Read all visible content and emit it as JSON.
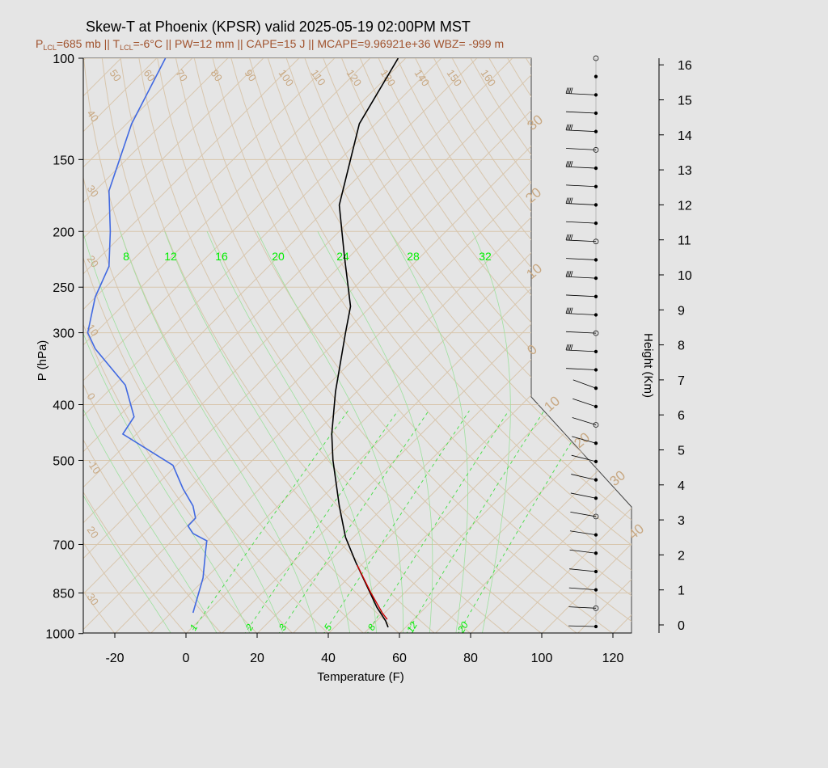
{
  "chart_data": {
    "type": "line",
    "title": "Skew-T at Phoenix (KPSR) valid 2025-05-19 02:00PM MST",
    "subtitle": {
      "lcl_pressure": "P",
      "lcl_pressure_sub": "LCL",
      "lcl_pressure_val": "=685 mb || T",
      "lcl_temp_sub": "LCL",
      "rest": "=-6°C || PW=12 mm || CAPE=15 J || MCAPE=9.96921e+36 WBZ= -999 m"
    },
    "xlabel": "Temperature (F)",
    "ylabel": "P (hPa)",
    "y2label": "Height (Km)",
    "x_ticks": [
      "-20",
      "0",
      "20",
      "40",
      "60",
      "80",
      "100",
      "120"
    ],
    "x_tick_values": [
      -20,
      0,
      20,
      40,
      60,
      80,
      100,
      120
    ],
    "y_ticks": [
      "100",
      "150",
      "200",
      "250",
      "300",
      "400",
      "500",
      "700",
      "850",
      "1000"
    ],
    "y_tick_values": [
      100,
      150,
      200,
      250,
      300,
      400,
      500,
      700,
      850,
      1000
    ],
    "height_ticks": [
      "0",
      "1",
      "2",
      "3",
      "4",
      "5",
      "6",
      "7",
      "8",
      "9",
      "10",
      "11",
      "12",
      "13",
      "14",
      "15",
      "16"
    ],
    "xlim": [
      -28,
      125
    ],
    "ylim": [
      1050,
      100
    ],
    "isotherm_labels_hot": [
      "50",
      "60",
      "70",
      "80",
      "90",
      "100",
      "110",
      "120",
      "130",
      "140",
      "150",
      "160"
    ],
    "isotherm_labels_cold": [
      "40",
      "30",
      "20",
      "10",
      "0",
      "-10",
      "20",
      "30"
    ],
    "isotherm_labels_right": [
      "30",
      "20",
      "10",
      "0",
      "10",
      "20",
      "30",
      "40"
    ],
    "mixing_ratio_top": [
      "8",
      "12",
      "16",
      "20",
      "24",
      "28",
      "32"
    ],
    "mixing_ratio_bottom": [
      "1",
      "2",
      "3",
      "5",
      "8",
      "12",
      "20"
    ],
    "series": [
      {
        "name": "",
        "color": "#000000",
        "points": [
          [
            100,
            48
          ],
          [
            130,
            17
          ],
          [
            180,
            1
          ],
          [
            220,
            5
          ],
          [
            270,
            10
          ],
          [
            300,
            6
          ],
          [
            380,
            -2
          ],
          [
            450,
            -5
          ],
          [
            500,
            -4
          ],
          [
            600,
            1
          ],
          [
            680,
            6
          ],
          [
            750,
            14
          ],
          [
            900,
            31
          ],
          [
            950,
            38
          ],
          [
            975,
            40
          ]
        ]
      },
      {
        "name": "",
        "color": "#4169e1",
        "points": [
          [
            100,
            -28
          ],
          [
            130,
            -55
          ],
          [
            170,
            -73
          ],
          [
            200,
            -72
          ],
          [
            230,
            -73
          ],
          [
            260,
            -84
          ],
          [
            300,
            -90
          ],
          [
            320,
            -84
          ],
          [
            370,
            -60
          ],
          [
            420,
            -53
          ],
          [
            450,
            -62
          ],
          [
            510,
            -22
          ],
          [
            560,
            -14
          ],
          [
            600,
            -6
          ],
          [
            630,
            -4
          ],
          [
            650,
            -10
          ],
          [
            670,
            -6
          ],
          [
            690,
            5
          ],
          [
            720,
            4
          ],
          [
            800,
            2
          ],
          [
            920,
            -6
          ]
        ]
      }
    ],
    "parcel": {
      "color": "#cc0000",
      "points": [
        [
          760,
          14
        ],
        [
          850,
          25
        ],
        [
          920,
          34
        ],
        [
          945,
          38
        ]
      ]
    },
    "wind_profile_dots": 32
  }
}
